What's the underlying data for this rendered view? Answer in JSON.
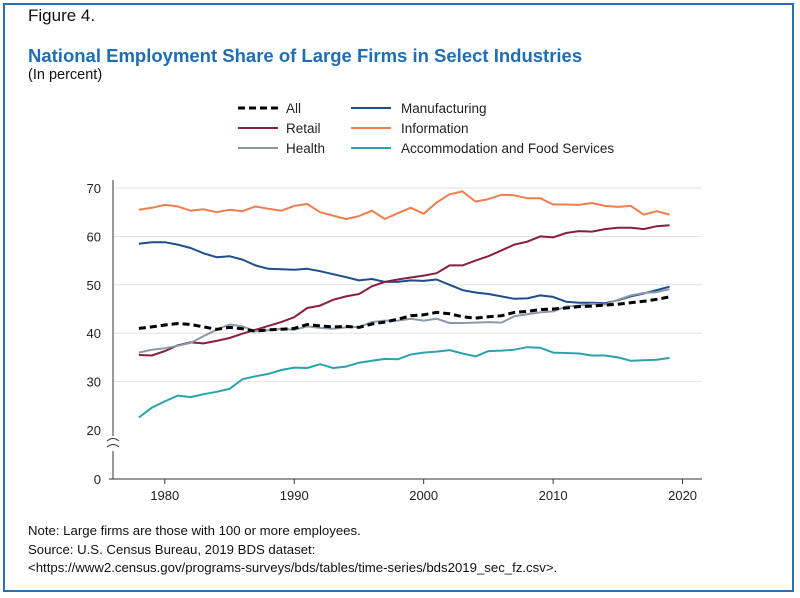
{
  "header": {
    "figure_label": "Figure 4.",
    "title": "National Employment Share of Large Firms in Select Industries",
    "subtitle": "(In percent)"
  },
  "notes": {
    "note": "Note: Large firms are those with 100 or more employees.",
    "source": "Source: U.S. Census Bureau, 2019 BDS dataset:",
    "url": "<https://www2.census.gov/programs-surveys/bds/tables/time-series/bds2019_sec_fz.csv>."
  },
  "chart_data": {
    "type": "line",
    "title": "National Employment Share of Large Firms in Select Industries",
    "subtitle": "(In percent)",
    "xlabel": "",
    "ylabel": "",
    "xlim": [
      1978,
      2019
    ],
    "ylim": [
      20,
      70
    ],
    "y_axis_break": true,
    "y_ticks": [
      "0",
      "20",
      "30",
      "40",
      "50",
      "60",
      "70"
    ],
    "x_ticks": [
      "1980",
      "1990",
      "2000",
      "2010",
      "2020"
    ],
    "grid": "horizontal",
    "legend_placement": "top",
    "x": [
      1978,
      1979,
      1980,
      1981,
      1982,
      1983,
      1984,
      1985,
      1986,
      1987,
      1988,
      1989,
      1990,
      1991,
      1992,
      1993,
      1994,
      1995,
      1996,
      1997,
      1998,
      1999,
      2000,
      2001,
      2002,
      2003,
      2004,
      2005,
      2006,
      2007,
      2008,
      2009,
      2010,
      2011,
      2012,
      2013,
      2014,
      2015,
      2016,
      2017,
      2018,
      2019
    ],
    "series": [
      {
        "name": "All",
        "color": "#000000",
        "dashed": true,
        "values": [
          41.0,
          41.3,
          41.7,
          42.0,
          41.8,
          41.3,
          40.8,
          41.2,
          40.9,
          40.4,
          40.7,
          40.8,
          41.0,
          41.8,
          41.5,
          41.3,
          41.4,
          41.2,
          41.9,
          42.3,
          42.9,
          43.6,
          43.8,
          44.3,
          44.0,
          43.4,
          43.1,
          43.4,
          43.6,
          44.3,
          44.5,
          44.9,
          45.0,
          45.2,
          45.5,
          45.6,
          45.8,
          46.0,
          46.3,
          46.6,
          47.0,
          47.5
        ]
      },
      {
        "name": "Manufacturing",
        "color": "#1f4e8c",
        "dashed": false,
        "values": [
          58.5,
          58.8,
          58.8,
          58.3,
          57.6,
          56.5,
          55.7,
          55.9,
          55.2,
          54.0,
          53.3,
          53.2,
          53.1,
          53.3,
          52.8,
          52.2,
          51.6,
          50.9,
          51.2,
          50.6,
          50.6,
          50.9,
          50.8,
          51.1,
          50.0,
          48.9,
          48.4,
          48.1,
          47.6,
          47.1,
          47.2,
          47.8,
          47.5,
          46.5,
          46.3,
          46.3,
          46.2,
          46.8,
          47.6,
          48.2,
          48.9,
          49.6
        ]
      },
      {
        "name": "Retail",
        "color": "#8a1e42",
        "dashed": false,
        "values": [
          35.5,
          35.4,
          36.3,
          37.5,
          38.1,
          37.9,
          38.4,
          39.0,
          39.9,
          40.7,
          41.5,
          42.3,
          43.3,
          45.2,
          45.7,
          46.9,
          47.6,
          48.1,
          49.7,
          50.6,
          51.1,
          51.5,
          51.9,
          52.4,
          54.0,
          54.0,
          55.0,
          55.9,
          57.1,
          58.3,
          58.9,
          60.0,
          59.8,
          60.7,
          61.1,
          61.0,
          61.5,
          61.8,
          61.8,
          61.5,
          62.1,
          62.3
        ]
      },
      {
        "name": "Information",
        "color": "#ef7d4d",
        "dashed": false,
        "values": [
          65.5,
          65.9,
          66.5,
          66.2,
          65.3,
          65.6,
          65.0,
          65.5,
          65.2,
          66.2,
          65.7,
          65.3,
          66.3,
          66.7,
          65.0,
          64.3,
          63.6,
          64.2,
          65.3,
          63.6,
          64.8,
          65.9,
          64.7,
          67.0,
          68.7,
          69.3,
          67.2,
          67.7,
          68.6,
          68.5,
          67.9,
          67.9,
          66.6,
          66.6,
          66.5,
          66.9,
          66.3,
          66.1,
          66.3,
          64.5,
          65.2,
          64.5
        ]
      },
      {
        "name": "Health",
        "color": "#8c9aa8",
        "dashed": false,
        "values": [
          36.0,
          36.6,
          36.9,
          37.4,
          38.0,
          39.4,
          40.7,
          41.8,
          41.4,
          40.4,
          40.6,
          40.9,
          40.7,
          41.4,
          41.1,
          40.9,
          41.2,
          41.3,
          42.3,
          42.6,
          42.6,
          43.0,
          42.6,
          43.0,
          42.1,
          42.1,
          42.2,
          42.3,
          42.2,
          43.5,
          43.9,
          44.3,
          44.5,
          45.5,
          45.7,
          46.1,
          45.9,
          46.9,
          47.8,
          48.3,
          48.5,
          49.1
        ]
      },
      {
        "name": "Accommodation and Food Services",
        "color": "#2aa3ad",
        "dashed": false,
        "values": [
          22.6,
          24.6,
          25.9,
          27.1,
          26.8,
          27.4,
          27.9,
          28.5,
          30.5,
          31.1,
          31.6,
          32.4,
          32.9,
          32.8,
          33.6,
          32.8,
          33.1,
          33.9,
          34.3,
          34.7,
          34.6,
          35.6,
          36.0,
          36.2,
          36.5,
          35.8,
          35.2,
          36.3,
          36.4,
          36.6,
          37.1,
          37.0,
          36.0,
          35.9,
          35.8,
          35.4,
          35.4,
          35.0,
          34.3,
          34.4,
          34.5,
          34.9
        ]
      }
    ]
  }
}
